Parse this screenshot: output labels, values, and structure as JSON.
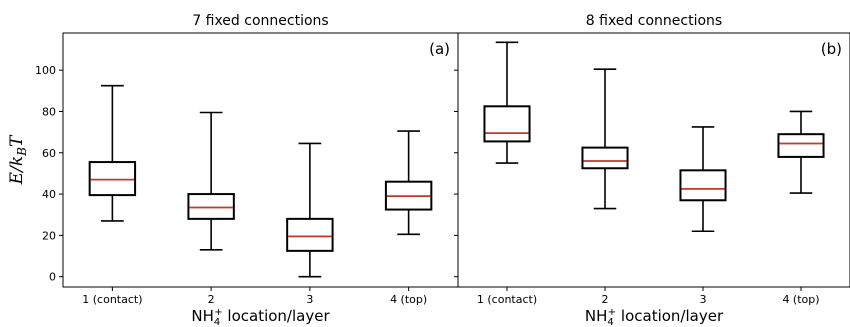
{
  "chart_data": [
    {
      "type": "box",
      "title": "7 fixed connections",
      "panel_label": "(a)",
      "categories": [
        "1 (contact)",
        "2",
        "3",
        "4 (top)"
      ],
      "boxes": [
        {
          "min": 27,
          "q1": 39.5,
          "median": 47,
          "q3": 55.5,
          "max": 92.5
        },
        {
          "min": 13,
          "q1": 28,
          "median": 33.5,
          "q3": 40,
          "max": 79.5
        },
        {
          "min": 0,
          "q1": 12.5,
          "median": 19.5,
          "q3": 28,
          "max": 64.5
        },
        {
          "min": 20.5,
          "q1": 32.5,
          "median": 39,
          "q3": 46,
          "max": 70.5
        }
      ],
      "xlabel": "NH4+ location/layer",
      "ylabel": "E/kBT",
      "ylim": [
        -5,
        118
      ],
      "yticks": [
        0,
        20,
        40,
        60,
        80,
        100
      ],
      "median_color": "#c0392b"
    },
    {
      "type": "box",
      "title": "8 fixed connections",
      "panel_label": "(b)",
      "categories": [
        "1 (contact)",
        "2",
        "3",
        "4 (top)"
      ],
      "boxes": [
        {
          "min": 55,
          "q1": 65.5,
          "median": 69.5,
          "q3": 82.5,
          "max": 113.5
        },
        {
          "min": 33,
          "q1": 52.5,
          "median": 56,
          "q3": 62.5,
          "max": 100.5
        },
        {
          "min": 22,
          "q1": 37,
          "median": 42.5,
          "q3": 51.5,
          "max": 72.5
        },
        {
          "min": 40.5,
          "q1": 58,
          "median": 64.5,
          "q3": 69,
          "max": 80
        }
      ],
      "xlabel": "NH4+ location/layer",
      "ylim": [
        -5,
        118
      ],
      "yticks": [
        0,
        20,
        40,
        60,
        80,
        100
      ],
      "median_color": "#c0392b"
    }
  ]
}
